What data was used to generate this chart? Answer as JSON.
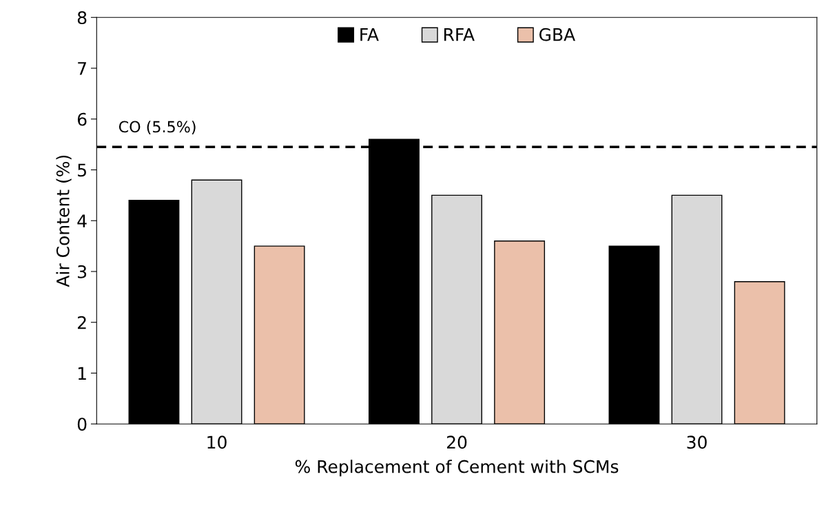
{
  "chart_data": {
    "type": "bar",
    "xlabel": "% Replacement of Cement with SCMs",
    "ylabel": "Air Content (%)",
    "categories": [
      "10",
      "20",
      "30"
    ],
    "series": [
      {
        "name": "FA",
        "color": "#000000",
        "values": [
          4.4,
          5.6,
          3.5
        ]
      },
      {
        "name": "RFA",
        "color": "#d9d9d9",
        "values": [
          4.8,
          4.5,
          4.5
        ]
      },
      {
        "name": "GBA",
        "color": "#ebc0aa",
        "values": [
          3.5,
          3.6,
          2.8
        ]
      }
    ],
    "ylim": [
      0,
      8
    ],
    "yticks": [
      0,
      1,
      2,
      3,
      4,
      5,
      6,
      7,
      8
    ],
    "grid": false,
    "legend": "top",
    "ref_lines": [
      {
        "axis": "y",
        "value": 5.45,
        "label": "CO (5.5%)",
        "color": "#000000",
        "line_style": "dashed"
      }
    ]
  }
}
